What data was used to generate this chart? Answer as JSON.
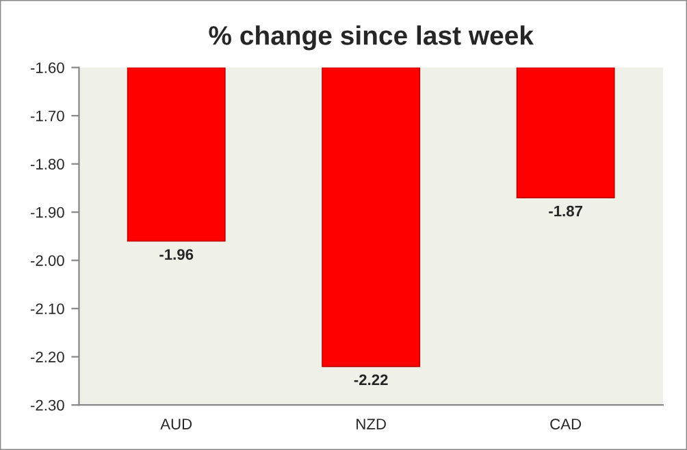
{
  "chart_data": {
    "type": "bar",
    "title": "% change since last week",
    "categories": [
      "AUD",
      "NZD",
      "CAD"
    ],
    "values": [
      -1.96,
      -2.22,
      -1.87
    ],
    "value_labels": [
      "-1.96",
      "-2.22",
      "-1.87"
    ],
    "color": "#ff0000",
    "ylim": [
      -2.3,
      -1.6
    ],
    "yticks": [
      {
        "value": -2.3,
        "label": "-2.30"
      },
      {
        "value": -2.2,
        "label": "-2.20"
      },
      {
        "value": -2.1,
        "label": "-2.10"
      },
      {
        "value": -2.0,
        "label": "-2.00"
      },
      {
        "value": -1.9,
        "label": "-1.90"
      },
      {
        "value": -1.8,
        "label": "-1.80"
      },
      {
        "value": -1.7,
        "label": "-1.70"
      },
      {
        "value": -1.6,
        "label": "-1.60"
      }
    ],
    "grid": false
  }
}
